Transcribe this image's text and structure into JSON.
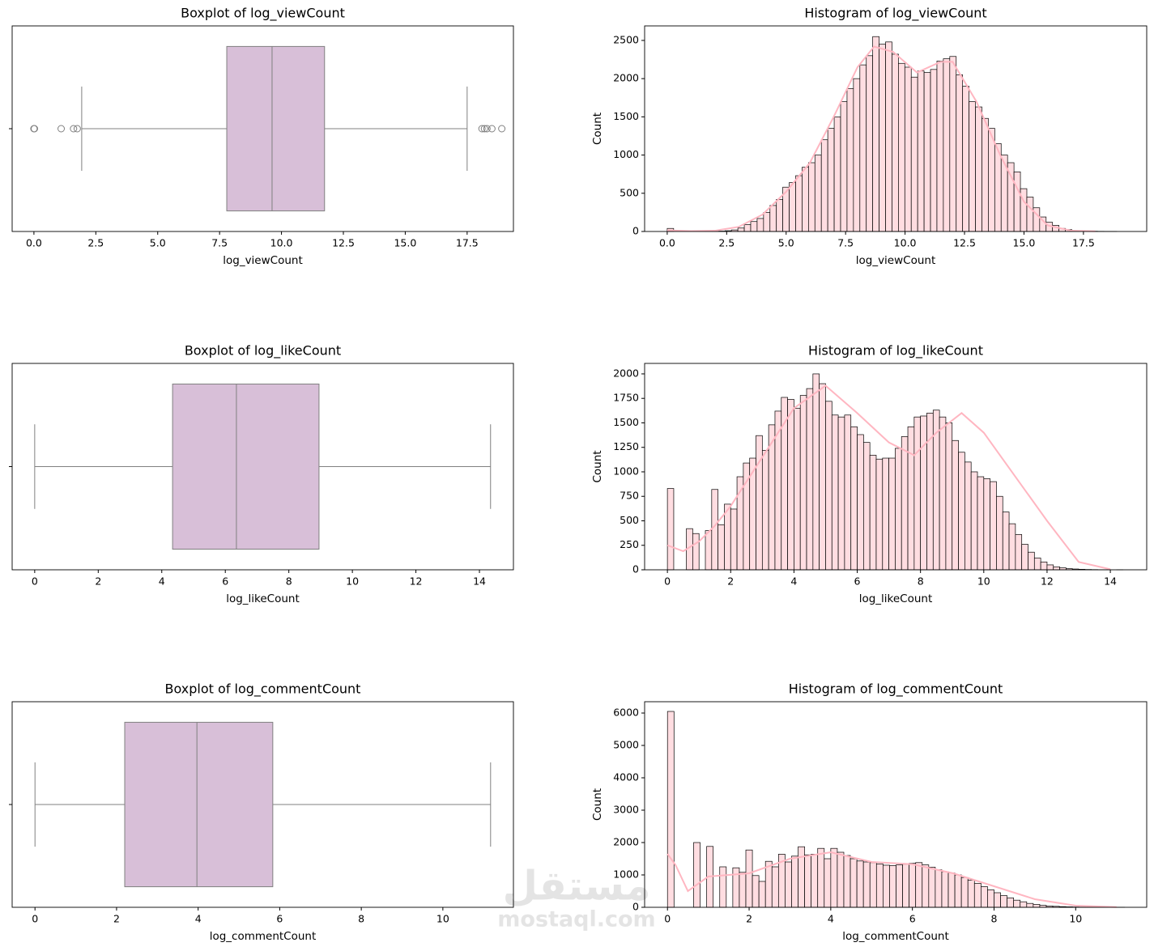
{
  "chart_data": [
    {
      "type": "box",
      "title": "Boxplot of log_viewCount",
      "xlabel": "log_viewCount",
      "xlim": [
        -0.88,
        19.37
      ],
      "xticks": [
        {
          "value": 0,
          "label": "0.0"
        },
        {
          "value": 2.5,
          "label": "2.5"
        },
        {
          "value": 5,
          "label": "5.0"
        },
        {
          "value": 7.5,
          "label": "7.5"
        },
        {
          "value": 10,
          "label": "10.0"
        },
        {
          "value": 12.5,
          "label": "12.5"
        },
        {
          "value": 15,
          "label": "15.0"
        },
        {
          "value": 17.5,
          "label": "17.5"
        }
      ],
      "q1": 7.79,
      "median": 9.62,
      "q3": 11.74,
      "whisker_low": 1.93,
      "whisker_high": 17.5,
      "outliers": [
        0,
        0.02,
        1.1,
        1.6,
        1.75,
        18.1,
        18.2,
        18.3,
        18.5,
        18.9
      ],
      "color": "#d8bfd8",
      "edge_color": "#808080"
    },
    {
      "type": "histogram",
      "title": "Histogram of log_viewCount",
      "xlabel": "log_viewCount",
      "ylabel": "Count",
      "xlim": [
        -0.95,
        20.16
      ],
      "ylim": [
        0,
        2690
      ],
      "xticks": [
        {
          "value": 0,
          "label": "0.0"
        },
        {
          "value": 2.5,
          "label": "2.5"
        },
        {
          "value": 5,
          "label": "5.0"
        },
        {
          "value": 7.5,
          "label": "7.5"
        },
        {
          "value": 10,
          "label": "10.0"
        },
        {
          "value": 12.5,
          "label": "12.5"
        },
        {
          "value": 15,
          "label": "15.0"
        },
        {
          "value": 17.5,
          "label": "17.5"
        }
      ],
      "yticks": [
        0,
        500,
        1000,
        1500,
        2000,
        2500
      ],
      "bins": [
        0,
        0.27,
        0.54,
        0.81,
        1.08,
        1.35,
        1.62,
        1.89,
        2.16,
        2.43,
        2.7,
        2.97,
        3.24,
        3.51,
        3.78,
        4.05,
        4.32,
        4.59,
        4.86,
        5.13,
        5.4,
        5.67,
        5.94,
        6.21,
        6.48,
        6.75,
        7.02,
        7.29,
        7.56,
        7.83,
        8.1,
        8.37,
        8.64,
        8.91,
        9.18,
        9.45,
        9.72,
        9.99,
        10.26,
        10.53,
        10.8,
        11.07,
        11.34,
        11.61,
        11.88,
        12.15,
        12.42,
        12.69,
        12.96,
        13.23,
        13.5,
        13.77,
        14.04,
        14.31,
        14.58,
        14.85,
        15.12,
        15.39,
        15.66,
        15.93,
        16.2,
        16.47,
        16.74,
        17.01,
        17.28,
        17.55,
        17.82,
        18.09,
        18.36,
        18.63,
        18.9
      ],
      "counts": [
        40,
        0,
        0,
        0,
        2,
        3,
        4,
        3,
        5,
        10,
        20,
        45,
        90,
        130,
        170,
        250,
        340,
        420,
        580,
        640,
        730,
        840,
        900,
        1000,
        1200,
        1350,
        1500,
        1700,
        1870,
        2000,
        2180,
        2300,
        2550,
        2450,
        2480,
        2320,
        2200,
        2150,
        2020,
        2100,
        2080,
        2120,
        2230,
        2260,
        2290,
        2050,
        1900,
        1700,
        1630,
        1480,
        1350,
        1150,
        1000,
        900,
        780,
        560,
        450,
        310,
        190,
        120,
        80,
        40,
        25,
        12,
        8,
        5,
        3,
        2,
        1,
        1
      ],
      "color": "#ffdde1",
      "edge_color": "#000000",
      "kde": {
        "x": [
          0,
          1,
          2,
          3,
          4,
          5,
          6,
          7,
          8,
          8.7,
          9.5,
          10.5,
          11.5,
          12,
          13,
          14,
          15,
          16,
          17,
          18
        ],
        "values": [
          15,
          5,
          10,
          60,
          220,
          520,
          900,
          1500,
          2150,
          2420,
          2350,
          2080,
          2220,
          2220,
          1700,
          1000,
          390,
          80,
          10,
          2
        ],
        "color": "#ffb6c1"
      }
    },
    {
      "type": "box",
      "title": "Boxplot of log_likeCount",
      "xlabel": "log_likeCount",
      "xlim": [
        -0.71,
        15.07
      ],
      "xticks": [
        0,
        2,
        4,
        6,
        8,
        10,
        12,
        14
      ],
      "q1": 4.34,
      "median": 6.35,
      "q3": 8.95,
      "whisker_low": 0,
      "whisker_high": 14.35,
      "outliers": [],
      "color": "#d8bfd8",
      "edge_color": "#808080"
    },
    {
      "type": "histogram",
      "title": "Histogram of log_likeCount",
      "xlabel": "log_likeCount",
      "ylabel": "Count",
      "xlim": [
        -0.72,
        15.15
      ],
      "ylim": [
        0,
        2107
      ],
      "xticks": [
        0,
        2,
        4,
        6,
        8,
        10,
        12,
        14
      ],
      "yticks": [
        0,
        250,
        500,
        750,
        1000,
        1250,
        1500,
        1750,
        2000
      ],
      "bins": [
        0,
        0.2,
        0.4,
        0.6,
        0.8,
        1,
        1.2,
        1.4,
        1.6,
        1.8,
        2,
        2.2,
        2.4,
        2.6,
        2.8,
        3,
        3.2,
        3.4,
        3.6,
        3.8,
        4,
        4.2,
        4.4,
        4.6,
        4.8,
        5,
        5.2,
        5.4,
        5.6,
        5.8,
        6,
        6.2,
        6.4,
        6.6,
        6.8,
        7,
        7.2,
        7.4,
        7.6,
        7.8,
        8,
        8.2,
        8.4,
        8.6,
        8.8,
        9,
        9.2,
        9.4,
        9.6,
        9.8,
        10,
        10.2,
        10.4,
        10.6,
        10.8,
        11,
        11.2,
        11.4,
        11.6,
        11.8,
        12,
        12.2,
        12.4,
        12.6,
        12.8,
        13,
        13.2,
        13.4,
        13.6,
        13.8,
        14,
        14.2,
        14.4
      ],
      "counts": [
        830,
        0,
        0,
        420,
        370,
        0,
        400,
        820,
        460,
        670,
        620,
        950,
        1090,
        1140,
        1370,
        1220,
        1480,
        1620,
        1760,
        1740,
        1650,
        1780,
        1850,
        2000,
        1900,
        1720,
        1580,
        1560,
        1580,
        1460,
        1380,
        1300,
        1170,
        1130,
        1140,
        1140,
        1240,
        1360,
        1460,
        1560,
        1570,
        1600,
        1630,
        1560,
        1500,
        1320,
        1200,
        1100,
        1000,
        950,
        930,
        900,
        750,
        590,
        470,
        360,
        260,
        180,
        120,
        80,
        50,
        30,
        20,
        12,
        8,
        5,
        3,
        2,
        1,
        1,
        0,
        1
      ],
      "color": "#ffdde1",
      "edge_color": "#000000",
      "kde": {
        "x": [
          0,
          0.5,
          1,
          1.5,
          2,
          3,
          4,
          5,
          6,
          7,
          7.8,
          8.5,
          9.3,
          10,
          11,
          12,
          13,
          14
        ],
        "values": [
          250,
          190,
          290,
          450,
          650,
          1150,
          1650,
          1880,
          1600,
          1300,
          1170,
          1400,
          1600,
          1400,
          950,
          500,
          80,
          5
        ],
        "color": "#ffb6c1"
      }
    },
    {
      "type": "box",
      "title": "Boxplot of log_commentCount",
      "xlabel": "log_commentCount",
      "xlim": [
        -0.56,
        11.73
      ],
      "xticks": [
        0,
        2,
        4,
        6,
        8,
        10
      ],
      "q1": 2.2,
      "median": 3.97,
      "q3": 5.83,
      "whisker_low": 0,
      "whisker_high": 11.17,
      "outliers": [],
      "color": "#d8bfd8",
      "edge_color": "#808080"
    },
    {
      "type": "histogram",
      "title": "Histogram of log_commentCount",
      "xlabel": "log_commentCount",
      "ylabel": "Count",
      "xlim": [
        -0.56,
        11.74
      ],
      "ylim": [
        0,
        6350
      ],
      "xticks": [
        0,
        2,
        4,
        6,
        8,
        10
      ],
      "yticks": [
        0,
        1000,
        2000,
        3000,
        4000,
        5000,
        6000
      ],
      "bins": [
        0,
        0.16,
        0.32,
        0.48,
        0.64,
        0.8,
        0.96,
        1.12,
        1.28,
        1.44,
        1.6,
        1.76,
        1.92,
        2.08,
        2.24,
        2.4,
        2.56,
        2.72,
        2.88,
        3.04,
        3.2,
        3.36,
        3.52,
        3.68,
        3.84,
        4,
        4.16,
        4.32,
        4.48,
        4.64,
        4.8,
        4.96,
        5.12,
        5.28,
        5.44,
        5.6,
        5.76,
        5.92,
        6.08,
        6.24,
        6.4,
        6.56,
        6.72,
        6.88,
        7.04,
        7.2,
        7.36,
        7.52,
        7.68,
        7.84,
        8,
        8.16,
        8.32,
        8.48,
        8.64,
        8.8,
        8.96,
        9.12,
        9.28,
        9.44,
        9.6,
        9.76,
        9.92,
        10.08,
        10.24,
        10.4,
        10.56,
        10.72,
        10.88,
        11.04,
        11.2
      ],
      "counts": [
        6050,
        0,
        0,
        0,
        2000,
        0,
        1880,
        0,
        1250,
        0,
        1220,
        1080,
        1770,
        980,
        800,
        1420,
        1250,
        1640,
        1400,
        1580,
        1870,
        1620,
        1640,
        1820,
        1500,
        1820,
        1700,
        1600,
        1500,
        1430,
        1400,
        1380,
        1340,
        1300,
        1290,
        1310,
        1330,
        1360,
        1380,
        1310,
        1240,
        1160,
        1100,
        1060,
        1000,
        920,
        840,
        740,
        640,
        540,
        450,
        360,
        290,
        220,
        170,
        120,
        90,
        60,
        40,
        30,
        20,
        14,
        9,
        6,
        4,
        3,
        2,
        1,
        1,
        1
      ],
      "color": "#ffdde1",
      "edge_color": "#000000",
      "kde": {
        "x": [
          0,
          0.2,
          0.5,
          1,
          2,
          3,
          4,
          5,
          6,
          7,
          8,
          9,
          10,
          11
        ],
        "values": [
          1650,
          1300,
          500,
          950,
          1050,
          1500,
          1700,
          1400,
          1330,
          1050,
          650,
          250,
          50,
          5
        ],
        "color": "#ffb6c1"
      }
    }
  ],
  "watermark": {
    "arabic": "مستقل",
    "latin": "mostaql.com"
  }
}
